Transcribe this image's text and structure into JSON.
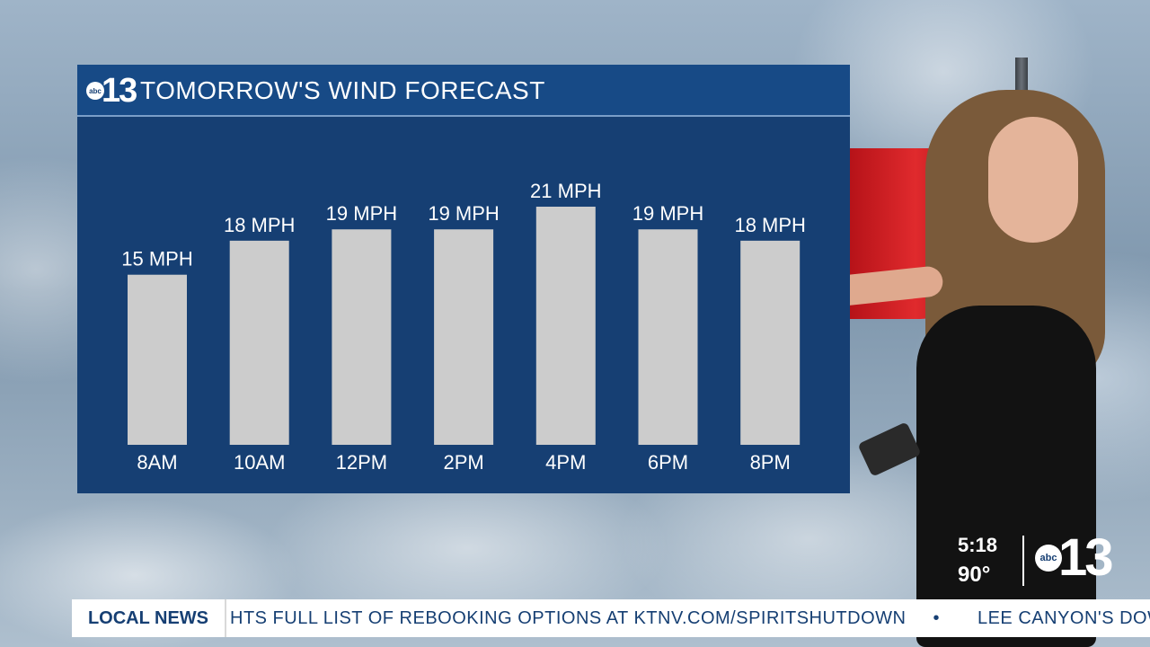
{
  "panel": {
    "title": "TOMORROW'S WIND FORECAST",
    "logo_network": "abc",
    "logo_number": "13"
  },
  "chart_data": {
    "type": "bar",
    "title": "TOMORROW'S WIND FORECAST",
    "categories": [
      "8AM",
      "10AM",
      "12PM",
      "2PM",
      "4PM",
      "6PM",
      "8PM"
    ],
    "values": [
      15,
      18,
      19,
      19,
      21,
      19,
      18
    ],
    "value_labels": [
      "15 MPH",
      "18 MPH",
      "19 MPH",
      "19 MPH",
      "21 MPH",
      "19 MPH",
      "18 MPH"
    ],
    "unit": "MPH",
    "bar_color": "#cccccc",
    "background_color": "#163f73",
    "ylim": [
      0,
      21
    ],
    "grid": false
  },
  "bug": {
    "time": "5:18",
    "temp": "90°",
    "logo_network": "abc",
    "logo_number": "13"
  },
  "ticker": {
    "tag": "LOCAL NEWS",
    "items": [
      "HTS FULL LIST OF REBOOKING OPTIONS AT KTNV.COM/SPIRITSHUTDOWN",
      "LEE CANYON'S DOWN"
    ],
    "separator": "•"
  },
  "colors": {
    "brand_blue": "#163f73",
    "header_blue": "#174a86",
    "windsock_red": "#e02a2d"
  }
}
